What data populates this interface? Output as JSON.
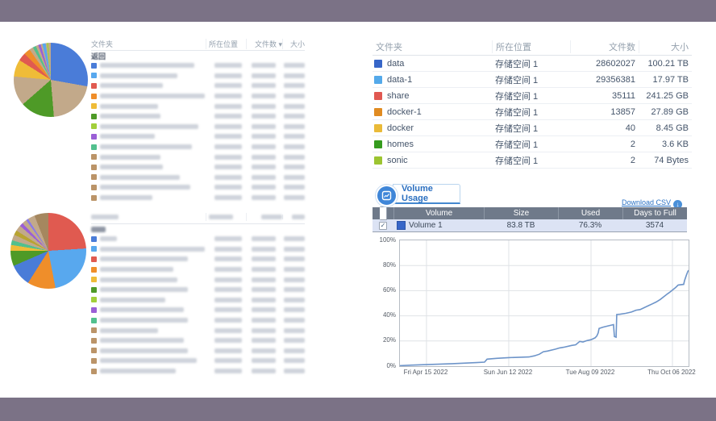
{
  "frame": {
    "color": "#7b7286"
  },
  "left_top_table": {
    "headers": [
      "文件夹",
      "所在位置",
      "文件数",
      "大小"
    ],
    "sort_indicator": "▾",
    "back_label": "返回",
    "rows": [
      {
        "color": "#4a7cd8",
        "w": 0.9
      },
      {
        "color": "#58a8ee",
        "w": 0.74
      },
      {
        "color": "#e05a50",
        "w": 0.6
      },
      {
        "color": "#ef8e2a",
        "w": 1.0
      },
      {
        "color": "#efbc38",
        "w": 0.55
      },
      {
        "color": "#4e9a27",
        "w": 0.58
      },
      {
        "color": "#a2cf3a",
        "w": 0.94
      },
      {
        "color": "#9a5fd6",
        "w": 0.52
      },
      {
        "color": "#52c08e",
        "w": 0.88
      },
      {
        "color": "#bb9468",
        "w": 0.58
      },
      {
        "color": "#bb9468",
        "w": 0.6
      },
      {
        "color": "#bb9468",
        "w": 0.76
      },
      {
        "color": "#bb9468",
        "w": 0.86
      },
      {
        "color": "#bb9468",
        "w": 0.5
      }
    ]
  },
  "left_bottom_table": {
    "rows": [
      {
        "color": "#4a7cd8",
        "w": 0.16
      },
      {
        "color": "#58a8ee",
        "w": 1.0
      },
      {
        "color": "#e05a50",
        "w": 0.84
      },
      {
        "color": "#ef8e2a",
        "w": 0.7
      },
      {
        "color": "#efbc38",
        "w": 0.74
      },
      {
        "color": "#4e9a27",
        "w": 0.84
      },
      {
        "color": "#a2cf3a",
        "w": 0.62
      },
      {
        "color": "#9a5fd6",
        "w": 0.8
      },
      {
        "color": "#52c08e",
        "w": 0.84
      },
      {
        "color": "#bb9468",
        "w": 0.55
      },
      {
        "color": "#bb9468",
        "w": 0.8
      },
      {
        "color": "#bb9468",
        "w": 0.84
      },
      {
        "color": "#bb9468",
        "w": 0.92
      },
      {
        "color": "#bb9468",
        "w": 0.72
      }
    ]
  },
  "pies": {
    "top": {
      "slices": [
        {
          "color": "#4a7cd8",
          "value": 28
        },
        {
          "color": "#c2a98a",
          "value": 21
        },
        {
          "color": "#4e9a27",
          "value": 15
        },
        {
          "color": "#c2a98a",
          "value": 13
        },
        {
          "color": "#efbc38",
          "value": 7.5
        },
        {
          "color": "#e05a50",
          "value": 3.6
        },
        {
          "color": "#ef8e2a",
          "value": 2.8
        },
        {
          "color": "#c2a98a",
          "value": 1.7
        },
        {
          "color": "#52c08e",
          "value": 1.4
        },
        {
          "color": "#c2a98a",
          "value": 1.1
        },
        {
          "color": "#9a5fd6",
          "value": 1.1
        },
        {
          "color": "#c2a98a",
          "value": 0.8
        },
        {
          "color": "#58a8ee",
          "value": 1.4
        },
        {
          "color": "#c2a98a",
          "value": 0.6
        },
        {
          "color": "#a2cf3a",
          "value": 0.6
        },
        {
          "color": "#c2a98a",
          "value": 1.1
        }
      ]
    },
    "bottom": {
      "slices": [
        {
          "color": "#e05a50",
          "value": 24
        },
        {
          "color": "#58a8ee",
          "value": 23
        },
        {
          "color": "#ef8e2a",
          "value": 12
        },
        {
          "color": "#4a7cd8",
          "value": 9.5
        },
        {
          "color": "#4e9a27",
          "value": 6.5
        },
        {
          "color": "#efbc38",
          "value": 2.5
        },
        {
          "color": "#52c08e",
          "value": 2.0
        },
        {
          "color": "#c2a98a",
          "value": 2.5
        },
        {
          "color": "#b8a432",
          "value": 2.0
        },
        {
          "color": "#c2a98a",
          "value": 2.5
        },
        {
          "color": "#9a5fd6",
          "value": 1.5
        },
        {
          "color": "#c2a98a",
          "value": 2.0
        },
        {
          "color": "#8a7ae8",
          "value": 1.0
        },
        {
          "color": "#c2a98a",
          "value": 3.0
        },
        {
          "color": "#a5875f",
          "value": 6.0
        }
      ]
    }
  },
  "folder_table": {
    "headers": [
      "文件夹",
      "所在位置",
      "文件数",
      "大小"
    ],
    "rows": [
      {
        "name": "data",
        "color": "#3766c8",
        "location": "存储空间 1",
        "files": "28602027",
        "size": "100.21 TB"
      },
      {
        "name": "data-1",
        "color": "#54a9ea",
        "location": "存储空间 1",
        "files": "29356381",
        "size": "17.97 TB"
      },
      {
        "name": "share",
        "color": "#e05851",
        "location": "存储空间 1",
        "files": "35111",
        "size": "241.25 GB"
      },
      {
        "name": "docker-1",
        "color": "#e08b21",
        "location": "存储空间 1",
        "files": "13857",
        "size": "27.89 GB"
      },
      {
        "name": "docker",
        "color": "#eaba38",
        "location": "存储空间 1",
        "files": "40",
        "size": "8.45 GB"
      },
      {
        "name": "homes",
        "color": "#359b1e",
        "location": "存储空间 1",
        "files": "2",
        "size": "3.6 KB"
      },
      {
        "name": "sonic",
        "color": "#9cc431",
        "location": "存储空间 1",
        "files": "2",
        "size": "74 Bytes"
      }
    ]
  },
  "volume_usage": {
    "title": "Volume Usage",
    "download_csv": "Download CSV",
    "download_icon": "↓",
    "table": {
      "headers": [
        "Volume",
        "Size",
        "Used",
        "Days to Full"
      ],
      "row": {
        "name": "Volume 1",
        "size": "83.8 TB",
        "used": "76.3%",
        "days_to_full": "3574",
        "checked": "✓"
      }
    }
  },
  "chart_data": {
    "type": "line",
    "title": "",
    "xlabel": "",
    "ylabel": "",
    "ylim": [
      0,
      100
    ],
    "grid": true,
    "legend_position": "none",
    "y_ticks": [
      "0%",
      "20%",
      "40%",
      "60%",
      "80%",
      "100%"
    ],
    "y_tick_values": [
      0,
      20,
      40,
      60,
      80,
      100
    ],
    "x_ticks": [
      "Fri Apr 15 2022",
      "Sun Jun 12 2022",
      "Tue Aug 09 2022",
      "Thu Oct 06 2022"
    ],
    "x_tick_pos": [
      9.2,
      37.7,
      66.2,
      94.4
    ],
    "series": [
      {
        "name": "Volume 1",
        "color": "#6d94c9",
        "points": [
          [
            0,
            0.4
          ],
          [
            2.8,
            0.7
          ],
          [
            9.2,
            1.2
          ],
          [
            18.2,
            2.0
          ],
          [
            26.5,
            2.8
          ],
          [
            29.3,
            3.2
          ],
          [
            30.2,
            5.6
          ],
          [
            33.5,
            6.2
          ],
          [
            37.7,
            6.8
          ],
          [
            44.7,
            7.3
          ],
          [
            46.6,
            8.2
          ],
          [
            48.3,
            9.5
          ],
          [
            49.7,
            11.5
          ],
          [
            51.1,
            12.0
          ],
          [
            53.9,
            13.5
          ],
          [
            55.3,
            14.5
          ],
          [
            56.7,
            15.0
          ],
          [
            59.5,
            16.5
          ],
          [
            60.9,
            17.0
          ],
          [
            62.3,
            19.7
          ],
          [
            63.4,
            19.2
          ],
          [
            64.8,
            20.3
          ],
          [
            66.2,
            21.0
          ],
          [
            67.6,
            22.5
          ],
          [
            68.2,
            24.0
          ],
          [
            68.7,
            26.5
          ],
          [
            69.0,
            30.0
          ],
          [
            70.4,
            31.0
          ],
          [
            71.8,
            31.8
          ],
          [
            74.0,
            33.0
          ],
          [
            74.3,
            23.5
          ],
          [
            74.9,
            23.0
          ],
          [
            75.1,
            41.0
          ],
          [
            76.3,
            41.3
          ],
          [
            78.2,
            42.0
          ],
          [
            80.2,
            43.0
          ],
          [
            81.8,
            44.5
          ],
          [
            83.2,
            45.0
          ],
          [
            84.6,
            46.5
          ],
          [
            86.0,
            48.0
          ],
          [
            87.4,
            49.5
          ],
          [
            88.8,
            51.0
          ],
          [
            90.2,
            53.0
          ],
          [
            91.6,
            55.5
          ],
          [
            92.7,
            57.5
          ],
          [
            93.6,
            59.0
          ],
          [
            94.4,
            60.5
          ],
          [
            95.5,
            62.5
          ],
          [
            96.4,
            64.5
          ],
          [
            98.3,
            65.0
          ],
          [
            98.6,
            68.0
          ],
          [
            99.2,
            72.0
          ],
          [
            99.7,
            75.0
          ],
          [
            100,
            76.3
          ]
        ]
      }
    ]
  }
}
